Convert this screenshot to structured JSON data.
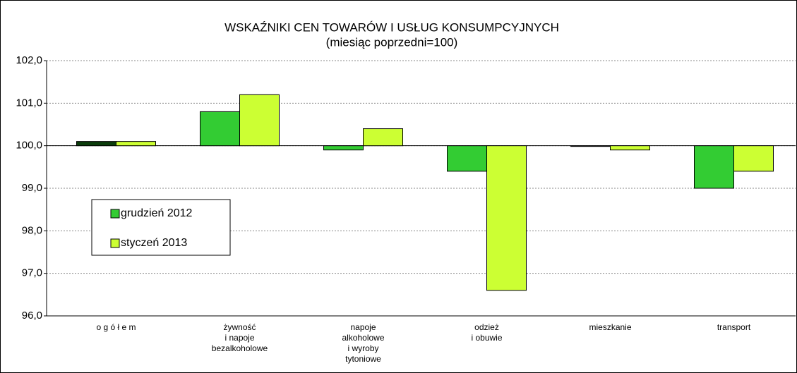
{
  "chart_data": {
    "type": "bar",
    "title": "WSKAŹNIKI CEN TOWARÓW I USŁUG KONSUMPCYJNYCH",
    "subtitle": "(miesiąc poprzedni=100)",
    "categories": [
      "o g ó ł e m",
      "żywność\ni napoje\nbezalkoholowe",
      "napoje\nalkoholowe\ni wyroby\ntytoniowe",
      "odzież\ni obuwie",
      "mieszkanie",
      "transport"
    ],
    "series": [
      {
        "name": "grudzień 2012",
        "color": "#33cc33",
        "colors": [
          "#0b3d0b",
          "#33cc33",
          "#33cc33",
          "#33cc33",
          "#33cc33",
          "#33cc33"
        ],
        "values": [
          100.1,
          100.8,
          99.9,
          99.4,
          100.0,
          99.0
        ]
      },
      {
        "name": "styczeń 2013",
        "color": "#ccff33",
        "values": [
          100.1,
          101.2,
          100.4,
          96.6,
          99.9,
          99.4
        ]
      }
    ],
    "baseline": 100,
    "ylim": [
      96,
      102
    ],
    "yticks": [
      {
        "value": 96,
        "label": "96,0"
      },
      {
        "value": 97,
        "label": "97,0"
      },
      {
        "value": 98,
        "label": "98,0"
      },
      {
        "value": 99,
        "label": "99,0"
      },
      {
        "value": 100,
        "label": "100,0"
      },
      {
        "value": 101,
        "label": "101,0"
      },
      {
        "value": 102,
        "label": "102,0"
      }
    ],
    "grid": true
  }
}
